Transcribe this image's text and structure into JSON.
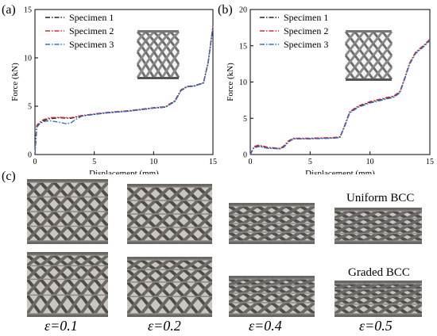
{
  "panel_labels": {
    "a": "(a)",
    "b": "(b)",
    "c": "(c)"
  },
  "chart_data": [
    {
      "type": "line",
      "panel": "(a)",
      "xlabel": "Displacement (mm)",
      "ylabel": "Force (kN)",
      "xlim": [
        0,
        15
      ],
      "ylim": [
        0,
        15
      ],
      "xticks": [
        0,
        5,
        10,
        15
      ],
      "yticks": [
        0,
        5,
        10,
        15
      ],
      "grid": false,
      "legend_position": "top-left",
      "series": [
        {
          "name": "Specimen 1",
          "color": "#222222",
          "dash": "dashdot",
          "x": [
            0,
            0.15,
            0.35,
            0.7,
            1.2,
            2,
            3,
            4,
            6,
            8,
            10,
            11,
            11.8,
            12.3,
            12.8,
            13.5,
            14.2,
            14.6,
            15
          ],
          "y": [
            0,
            2.9,
            3.2,
            3.5,
            3.7,
            3.8,
            3.75,
            4.0,
            4.3,
            4.5,
            4.8,
            4.9,
            5.5,
            6.6,
            7.0,
            7.1,
            7.4,
            9.5,
            13.2
          ]
        },
        {
          "name": "Specimen 2",
          "color": "#d62d2d",
          "dash": "dashdot",
          "x": [
            0,
            0.15,
            0.35,
            0.7,
            1.2,
            2,
            3,
            4,
            6,
            8,
            10,
            11,
            11.8,
            12.3,
            12.8,
            13.5,
            14.2,
            14.6,
            15
          ],
          "y": [
            0,
            3.0,
            3.3,
            3.6,
            3.8,
            3.85,
            3.8,
            4.05,
            4.35,
            4.55,
            4.85,
            4.95,
            5.6,
            6.7,
            7.05,
            7.15,
            7.45,
            9.6,
            13.3
          ]
        },
        {
          "name": "Specimen 3",
          "color": "#2f6fcf",
          "dash": "dashdot",
          "x": [
            0,
            0.15,
            0.35,
            0.7,
            1.2,
            2,
            2.6,
            3.0,
            3.4,
            4,
            6,
            8,
            10,
            11,
            11.8,
            12.3,
            12.8,
            13.5,
            14.2,
            14.6,
            15
          ],
          "y": [
            0,
            2.8,
            3.1,
            3.4,
            3.5,
            3.35,
            3.2,
            3.25,
            3.6,
            4.0,
            4.3,
            4.5,
            4.8,
            4.9,
            5.5,
            6.6,
            7.0,
            7.1,
            7.4,
            9.5,
            13.2
          ]
        }
      ],
      "inset_image": "graded lattice cylinder"
    },
    {
      "type": "line",
      "panel": "(b)",
      "xlabel": "Displacement (mm)",
      "ylabel": "Force (kN)",
      "xlim": [
        0,
        15
      ],
      "ylim": [
        0,
        20
      ],
      "xticks": [
        0,
        5,
        10,
        15
      ],
      "yticks": [
        0,
        5,
        10,
        15,
        20
      ],
      "grid": false,
      "legend_position": "top-left",
      "series": [
        {
          "name": "Specimen 1",
          "color": "#222222",
          "dash": "dashdot",
          "x": [
            0,
            0.3,
            0.7,
            1.5,
            2.5,
            2.8,
            3.2,
            3.6,
            5,
            7,
            7.5,
            7.9,
            8.3,
            9,
            10,
            12,
            12.5,
            12.9,
            13.3,
            13.8,
            14.5,
            15
          ],
          "y": [
            0,
            1.0,
            1.2,
            0.9,
            0.8,
            1.1,
            1.8,
            2.2,
            2.2,
            2.3,
            2.4,
            4.0,
            5.8,
            6.6,
            7.2,
            8.0,
            8.6,
            10.5,
            12.5,
            14.0,
            15.0,
            15.8
          ]
        },
        {
          "name": "Specimen 2",
          "color": "#d62d2d",
          "dash": "dashdot",
          "x": [
            0,
            0.3,
            0.7,
            1.5,
            2.5,
            2.8,
            3.2,
            3.6,
            5,
            7,
            7.5,
            7.9,
            8.3,
            9,
            10,
            12,
            12.5,
            12.9,
            13.3,
            13.8,
            14.5,
            15
          ],
          "y": [
            0,
            1.1,
            1.3,
            1.0,
            0.85,
            1.2,
            1.9,
            2.25,
            2.25,
            2.35,
            2.45,
            4.1,
            5.9,
            6.7,
            7.3,
            8.1,
            8.7,
            10.6,
            12.6,
            14.1,
            15.1,
            15.9
          ]
        },
        {
          "name": "Specimen 3",
          "color": "#2f6fcf",
          "dash": "dashdot",
          "x": [
            0,
            0.3,
            0.7,
            1.5,
            2.5,
            2.8,
            3.2,
            3.6,
            5,
            7,
            7.5,
            7.9,
            8.3,
            9,
            10,
            12,
            12.5,
            12.9,
            13.3,
            13.8,
            14.5,
            15
          ],
          "y": [
            0,
            0.9,
            1.1,
            0.85,
            0.8,
            1.0,
            1.7,
            2.15,
            2.15,
            2.25,
            2.35,
            3.9,
            5.7,
            6.5,
            7.1,
            7.9,
            8.5,
            10.4,
            12.4,
            13.9,
            14.9,
            15.7
          ]
        }
      ],
      "inset_image": "uniform lattice cylinder"
    }
  ],
  "panel_c": {
    "row_labels": [
      "Uniform BCC",
      "Graded BCC"
    ],
    "strain_labels": [
      "ε=0.1",
      "ε=0.2",
      "ε=0.4",
      "ε=0.5"
    ],
    "photos": [
      {
        "row": "Uniform BCC",
        "strain": "ε=0.1",
        "compression": 0.1
      },
      {
        "row": "Uniform BCC",
        "strain": "ε=0.2",
        "compression": 0.2
      },
      {
        "row": "Uniform BCC",
        "strain": "ε=0.4",
        "compression": 0.4
      },
      {
        "row": "Uniform BCC",
        "strain": "ε=0.5",
        "compression": 0.5
      },
      {
        "row": "Graded BCC",
        "strain": "ε=0.1",
        "compression": 0.1
      },
      {
        "row": "Graded BCC",
        "strain": "ε=0.2",
        "compression": 0.2
      },
      {
        "row": "Graded BCC",
        "strain": "ε=0.4",
        "compression": 0.4
      },
      {
        "row": "Graded BCC",
        "strain": "ε=0.5",
        "compression": 0.5
      }
    ]
  }
}
